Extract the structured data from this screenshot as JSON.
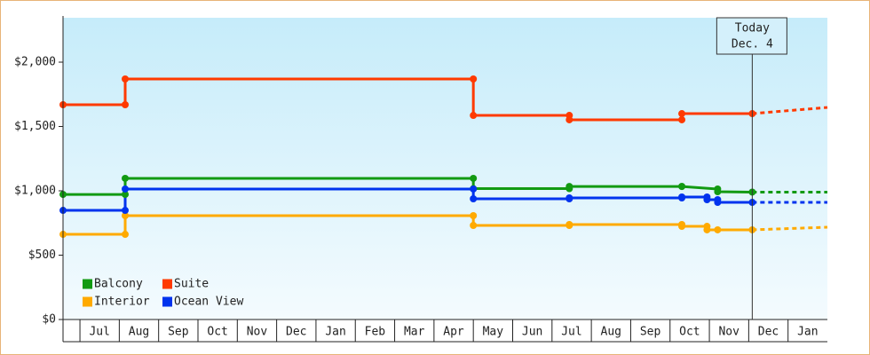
{
  "chart_data": {
    "type": "step-line",
    "categories": [
      null,
      "Jul",
      "Aug",
      "Sep",
      "Oct",
      "Nov",
      "Dec",
      "Jan",
      "Feb",
      "Mar",
      "Apr",
      "May",
      "Jun",
      "Jul",
      "Aug",
      "Sep",
      "Oct",
      "Nov",
      "Dec",
      "Jan"
    ],
    "xlim": [
      0.57,
      20
    ],
    "ylim": [
      0,
      2345
    ],
    "yticks": [
      {
        "value": 0,
        "label": "$0"
      },
      {
        "value": 500,
        "label": "$500"
      },
      {
        "value": 1000,
        "label": "$1,000"
      },
      {
        "value": 1500,
        "label": "$1,500"
      },
      {
        "value": 2000,
        "label": "$2,000"
      }
    ],
    "annotation": {
      "lines": [
        "Today",
        "Dec. 4"
      ],
      "x": 18.09
    },
    "forecast_x": [
      18.09,
      20
    ],
    "legend": "bottom-left",
    "series": [
      {
        "name": "Balcony",
        "color": "#129a12",
        "x": [
          0.57,
          2.15,
          2.15,
          11.0,
          11.0,
          13.44,
          13.44,
          16.3,
          16.3,
          17.21,
          17.21,
          18.09
        ],
        "values": [
          972,
          972,
          1097,
          1097,
          1017,
          1017,
          1034,
          1034,
          1034,
          1014,
          993,
          990
        ],
        "forecast_values": [
          990,
          990
        ]
      },
      {
        "name": "Suite",
        "color": "#ff3a00",
        "x": [
          0.57,
          2.15,
          2.15,
          11.0,
          11.0,
          13.44,
          13.44,
          16.3,
          16.3,
          18.09
        ],
        "values": [
          1669,
          1669,
          1869,
          1869,
          1586,
          1586,
          1552,
          1552,
          1600,
          1600
        ],
        "forecast_values": [
          1600,
          1648
        ]
      },
      {
        "name": "Interior",
        "color": "#ffaa00",
        "x": [
          0.57,
          2.15,
          2.15,
          11.0,
          11.0,
          13.44,
          13.44,
          16.3,
          16.3,
          16.94,
          16.94,
          17.21,
          18.09
        ],
        "values": [
          662,
          662,
          807,
          807,
          731,
          731,
          738,
          738,
          724,
          724,
          697,
          697,
          697
        ],
        "forecast_values": [
          697,
          717
        ]
      },
      {
        "name": "Ocean View",
        "color": "#0033ee",
        "x": [
          0.57,
          2.15,
          2.15,
          11.0,
          11.0,
          13.44,
          13.44,
          16.3,
          16.3,
          16.94,
          16.94,
          17.21,
          17.21,
          18.09
        ],
        "values": [
          848,
          848,
          1014,
          1014,
          938,
          938,
          945,
          945,
          952,
          952,
          931,
          931,
          910,
          910
        ],
        "forecast_values": [
          910,
          910
        ]
      }
    ]
  }
}
